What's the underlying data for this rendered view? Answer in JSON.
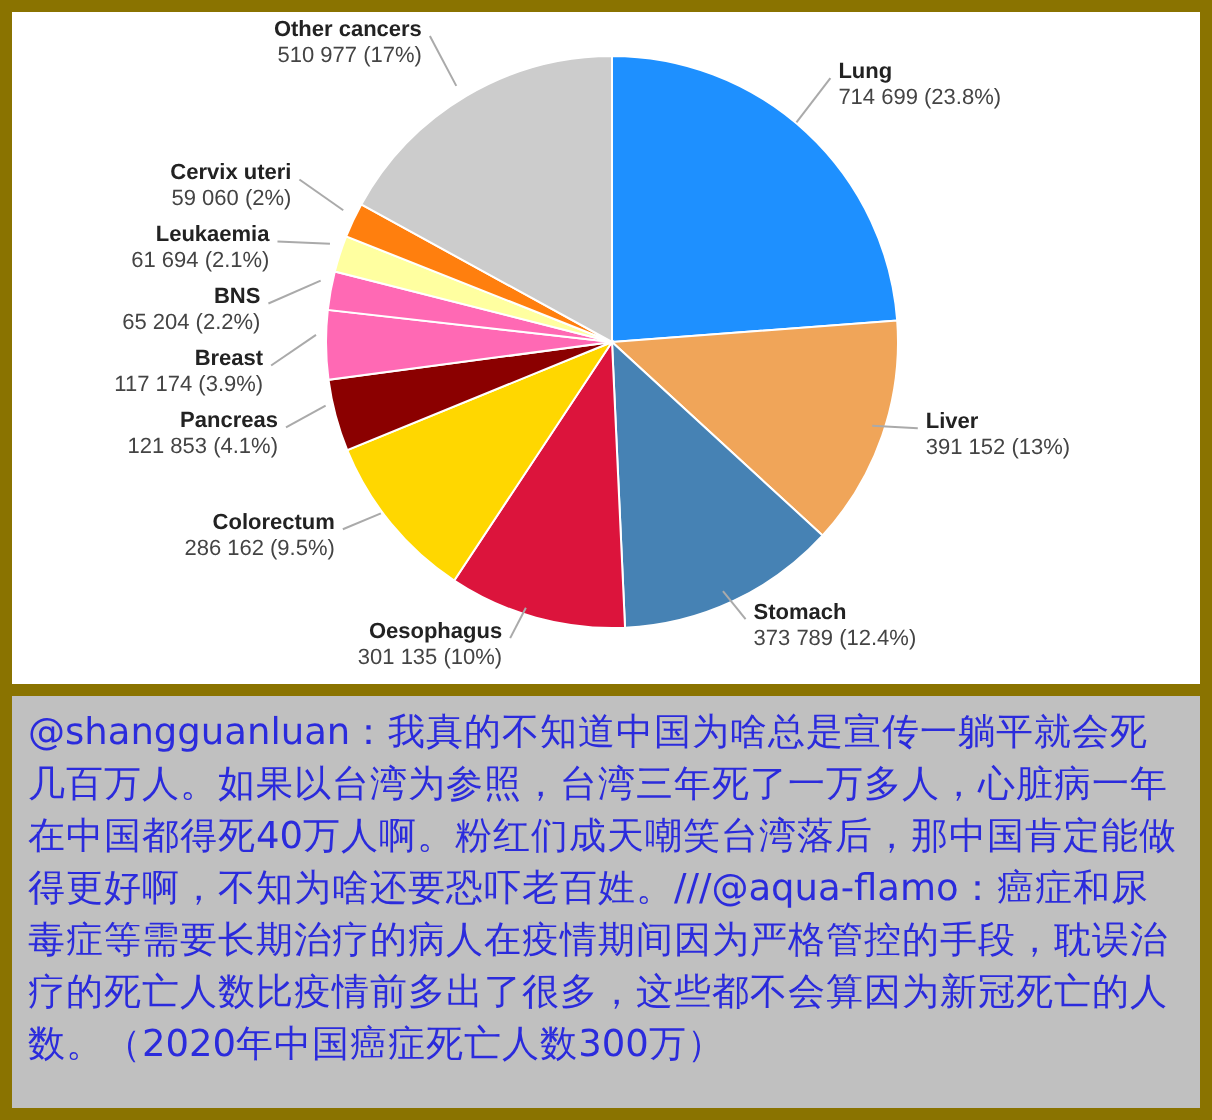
{
  "chart_data": {
    "type": "pie",
    "categories": [
      "Lung",
      "Liver",
      "Stomach",
      "Oesophagus",
      "Colorectum",
      "Pancreas",
      "Breast",
      "BNS",
      "Leukaemia",
      "Cervix uteri",
      "Other cancers"
    ],
    "values": [
      714699,
      391152,
      373789,
      301135,
      286162,
      121853,
      117174,
      65204,
      61694,
      59060,
      510977
    ],
    "value_labels": [
      "714 699 (23.8%)",
      "391 152 (13%)",
      "373 789 (12.4%)",
      "301 135 (10%)",
      "286 162 (9.5%)",
      "121 853 (4.1%)",
      "117 174 (3.9%)",
      "65 204 (2.2%)",
      "61 694 (2.1%)",
      "59 060 (2%)",
      "510 977 (17%)"
    ],
    "colors": [
      "#1e90ff",
      "#f0a559",
      "#4682b4",
      "#dc143c",
      "#ffd700",
      "#8b0000",
      "#ff69b4",
      "#ff69b4",
      "#ffffa0",
      "#ff7f0e",
      "#cccccc"
    ],
    "legend": false,
    "annotations": [
      "@shangguanluan：我真的不知道中国为啥总是宣传一躺平就会死几百万人。如果以台湾为参照，台湾三年死了一万多人，心脏病一年在中国都得死40万人啊。粉红们成天嘲笑台湾落后，那中国肯定能做得更好啊，不知为啥还要恐吓老百姓。///@aqua-flamo：癌症和尿毒症等需要长期治疗的病人在疫情期间因为严格管控的手段，耽误治疗的死亡人数比疫情前多出了很多，这些都不会算因为新冠死亡的人数。（2020年中国癌症死亡人数300万）"
    ]
  }
}
